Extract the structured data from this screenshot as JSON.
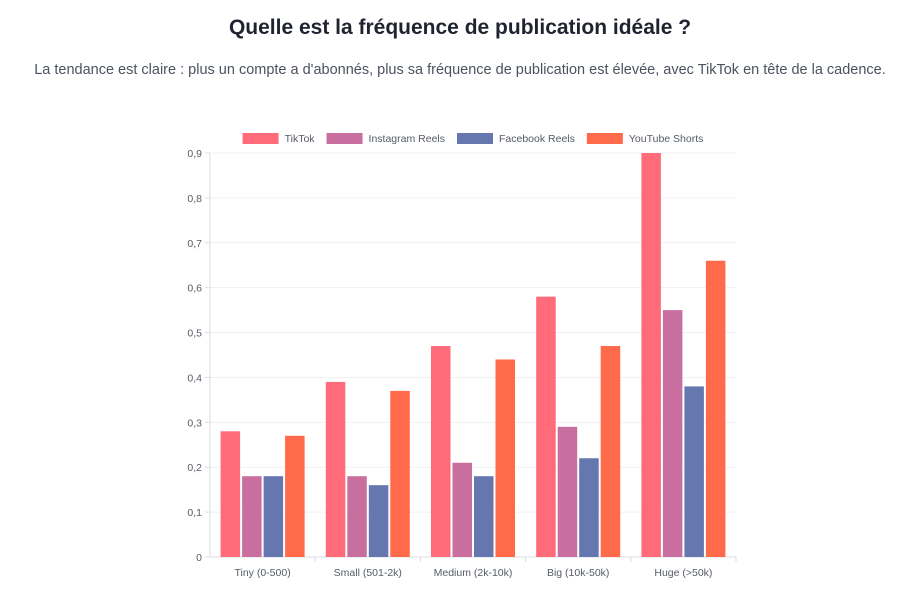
{
  "header": {
    "title": "Quelle est la fréquence de publication idéale ?",
    "subtitle": "La tendance est claire : plus un compte a d'abonnés, plus sa fréquence de publication est élevée, avec TikTok en tête de la cadence."
  },
  "chart_data": {
    "type": "bar",
    "title": "Quelle est la fréquence de publication idéale ?",
    "xlabel": "",
    "ylabel": "",
    "ylim": [
      0,
      0.9
    ],
    "yticks": [
      0,
      0.1,
      0.2,
      0.3,
      0.4,
      0.5,
      0.6,
      0.7,
      0.8,
      0.9
    ],
    "ytick_labels": [
      "0",
      "0,1",
      "0,2",
      "0,3",
      "0,4",
      "0,5",
      "0,6",
      "0,7",
      "0,8",
      "0,9"
    ],
    "grid": true,
    "legend_position": "top",
    "categories": [
      "Tiny (0-500)",
      "Small (501-2k)",
      "Medium (2k-10k)",
      "Big (10k-50k)",
      "Huge (>50k)"
    ],
    "series": [
      {
        "name": "TikTok",
        "color": "#ff6b78",
        "values": [
          0.28,
          0.39,
          0.47,
          0.58,
          0.9
        ]
      },
      {
        "name": "Instagram Reels",
        "color": "#c86fa0",
        "values": [
          0.18,
          0.18,
          0.21,
          0.29,
          0.55
        ]
      },
      {
        "name": "Facebook Reels",
        "color": "#6677b0",
        "values": [
          0.18,
          0.16,
          0.18,
          0.22,
          0.38
        ]
      },
      {
        "name": "YouTube Shorts",
        "color": "#ff6a4a",
        "values": [
          0.27,
          0.37,
          0.44,
          0.47,
          0.66
        ]
      }
    ]
  }
}
